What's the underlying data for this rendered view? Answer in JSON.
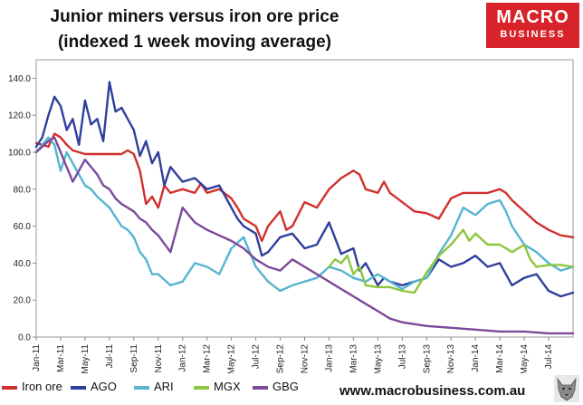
{
  "header": {
    "title_line1": "Junior miners versus iron ore price",
    "title_line2": "(indexed 1 week moving average)"
  },
  "logo": {
    "line1": "MACRO",
    "line2": "BUSINESS",
    "color": "#d8232a"
  },
  "footer": {
    "url": "www.macrobusiness.com.au"
  },
  "chart_data": {
    "type": "line",
    "title": "Junior miners versus iron ore price (indexed 1 week moving average)",
    "xlabel": "",
    "ylabel": "",
    "ylim": [
      0,
      150
    ],
    "yticks": [
      "0.0",
      "20.0",
      "40.0",
      "60.0",
      "80.0",
      "100.0",
      "120.0",
      "140.0"
    ],
    "x_range": [
      0,
      44
    ],
    "x_ticks": [
      "Jan-11",
      "Mar-11",
      "May-11",
      "Jul-11",
      "Sep-11",
      "Nov-11",
      "Jan-12",
      "Mar-12",
      "May-12",
      "Jul-12",
      "Sep-12",
      "Nov-12",
      "Jan-13",
      "Mar-13",
      "May-13",
      "Jul-13",
      "Sep-13",
      "Nov-13",
      "Jan-14",
      "Mar-14",
      "May-14",
      "Jul-14"
    ],
    "x_unit": "months since Jan-11",
    "series": [
      {
        "name": "Iron ore",
        "color": "#d0302c",
        "x": [
          0,
          1,
          1.5,
          2,
          2.5,
          3,
          4,
          5,
          6,
          6.5,
          7,
          7.5,
          8,
          8.5,
          9,
          9.5,
          10,
          10.5,
          11,
          12,
          13,
          13.5,
          14,
          15,
          16,
          16.5,
          17,
          18,
          18.5,
          19,
          20,
          20.5,
          21,
          22,
          23,
          24,
          25,
          26,
          26.5,
          27,
          28,
          28.5,
          29,
          30,
          31,
          32,
          33,
          34,
          35,
          36,
          37,
          38,
          38.5,
          39,
          40,
          41,
          42,
          43,
          44
        ],
        "y": [
          105,
          103,
          110,
          108,
          104,
          101,
          99,
          99,
          99,
          99,
          99,
          101,
          99,
          90,
          72,
          76,
          70,
          82,
          78,
          80,
          78,
          83,
          78,
          80,
          75,
          70,
          64,
          60,
          52,
          60,
          68,
          58,
          60,
          73,
          70,
          80,
          86,
          90,
          88,
          80,
          78,
          84,
          78,
          73,
          68,
          67,
          64,
          75,
          78,
          78,
          78,
          80,
          78,
          74,
          68,
          62,
          58,
          55,
          54
        ]
      },
      {
        "name": "AGO",
        "color": "#2f3f9e",
        "x": [
          0,
          0.5,
          1,
          1.5,
          2,
          2.5,
          3,
          3.5,
          4,
          4.5,
          5,
          5.5,
          6,
          6.5,
          7,
          7.5,
          8,
          8.5,
          9,
          9.5,
          10,
          10.5,
          11,
          12,
          13,
          14,
          15,
          16,
          16.5,
          17,
          18,
          18.5,
          19,
          20,
          21,
          22,
          23,
          24,
          25,
          26,
          26.5,
          27,
          28,
          28.5,
          29,
          30,
          31,
          32,
          33,
          34,
          35,
          36,
          37,
          38,
          39,
          40,
          41,
          42,
          43,
          44
        ],
        "y": [
          103,
          108,
          120,
          130,
          125,
          112,
          118,
          104,
          128,
          115,
          118,
          106,
          138,
          122,
          124,
          118,
          112,
          98,
          106,
          94,
          100,
          82,
          92,
          84,
          86,
          80,
          82,
          70,
          64,
          60,
          56,
          44,
          46,
          54,
          56,
          48,
          50,
          62,
          45,
          48,
          36,
          40,
          28,
          32,
          30,
          28,
          30,
          32,
          42,
          38,
          40,
          44,
          38,
          40,
          28,
          32,
          34,
          25,
          22,
          24
        ]
      },
      {
        "name": "ARI",
        "color": "#55b5cf",
        "x": [
          0,
          0.5,
          1,
          1.5,
          2,
          2.5,
          3,
          3.5,
          4,
          4.5,
          5,
          6,
          7,
          7.5,
          8,
          8.5,
          9,
          9.5,
          10,
          11,
          12,
          13,
          14,
          15,
          16,
          17,
          18,
          19,
          20,
          21,
          22,
          23,
          24,
          25,
          26,
          27,
          28,
          29,
          30,
          31,
          32,
          33,
          34,
          35,
          36,
          37,
          38,
          38.5,
          39,
          40,
          41,
          42,
          43,
          44
        ],
        "y": [
          100,
          104,
          108,
          104,
          90,
          100,
          94,
          88,
          82,
          80,
          76,
          70,
          60,
          58,
          54,
          46,
          42,
          34,
          34,
          28,
          30,
          40,
          38,
          34,
          48,
          54,
          38,
          30,
          25,
          28,
          30,
          32,
          38,
          36,
          32,
          30,
          34,
          30,
          26,
          30,
          32,
          45,
          55,
          70,
          66,
          72,
          74,
          68,
          60,
          50,
          46,
          40,
          36,
          38
        ]
      },
      {
        "name": "MGX",
        "color": "#8dc63f",
        "x": [
          24,
          24.5,
          25,
          25.5,
          26,
          26.5,
          27,
          28,
          29,
          30,
          31,
          32,
          33,
          34,
          35,
          35.5,
          36,
          37,
          38,
          39,
          40,
          40.5,
          41,
          42,
          43,
          44
        ],
        "y": [
          38,
          42,
          40,
          44,
          34,
          38,
          28,
          27,
          27,
          25,
          24,
          35,
          44,
          50,
          58,
          52,
          56,
          50,
          50,
          46,
          50,
          42,
          38,
          39,
          39,
          38
        ]
      },
      {
        "name": "GBG",
        "color": "#7b4a9a",
        "x": [
          0,
          1,
          1.5,
          2,
          2.5,
          3,
          4,
          5,
          5.5,
          6,
          6.5,
          7,
          8,
          8.5,
          9,
          9.5,
          10,
          11,
          12,
          13,
          14,
          15,
          16,
          17,
          18,
          19,
          20,
          21,
          22,
          23,
          24,
          25,
          26,
          27,
          28,
          29,
          30,
          32,
          34,
          36,
          38,
          40,
          42,
          44
        ],
        "y": [
          100,
          106,
          108,
          100,
          92,
          84,
          96,
          88,
          82,
          80,
          75,
          72,
          68,
          64,
          62,
          58,
          55,
          46,
          70,
          62,
          58,
          55,
          52,
          48,
          42,
          38,
          36,
          42,
          38,
          34,
          30,
          26,
          22,
          18,
          14,
          10,
          8,
          6,
          5,
          4,
          3,
          3,
          2,
          2
        ]
      }
    ]
  }
}
